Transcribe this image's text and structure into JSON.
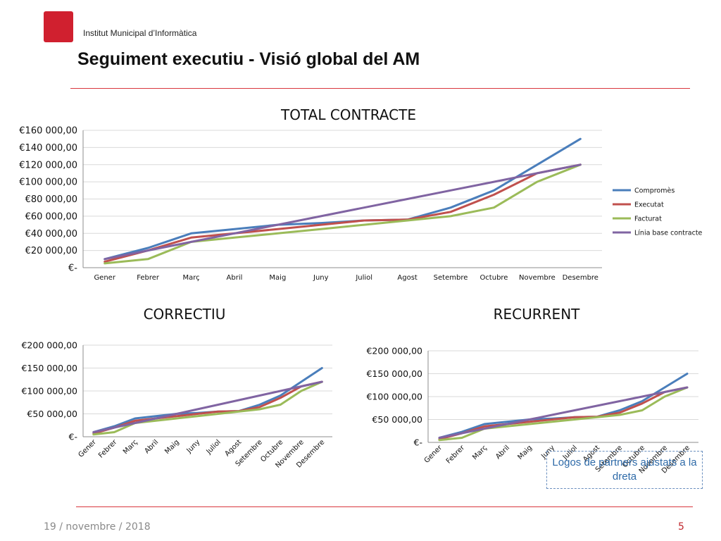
{
  "header": {
    "org": "Institut Municipal d’Informàtica",
    "title": "Seguiment executiu - Visió global del AM"
  },
  "colors": {
    "accent_red": "#d9363e",
    "compromes": "#4a7ebb",
    "executat": "#c0504d",
    "facturat": "#9bbb59",
    "linia_base": "#8064a2"
  },
  "chart_data": [
    {
      "id": "total",
      "type": "line",
      "title": "TOTAL CONTRACTE",
      "categories": [
        "Gener",
        "Febrer",
        "Març",
        "Abril",
        "Maig",
        "Juny",
        "Juliol",
        "Agost",
        "Setembre",
        "Octubre",
        "Novembre",
        "Desembre"
      ],
      "y_ticks": [
        0,
        20000,
        40000,
        60000,
        80000,
        100000,
        120000,
        140000,
        160000
      ],
      "y_tick_labels": [
        "€-",
        "€20 000,00",
        "€40 000,00",
        "€60 000,00",
        "€80 000,00",
        "€100 000,00",
        "€120 000,00",
        "€140 000,00",
        "€160 000,00"
      ],
      "ylim": [
        0,
        160000
      ],
      "grid": true,
      "legend_position": "right",
      "series": [
        {
          "name": "Compromès",
          "color": "#4a7ebb",
          "values": [
            10000,
            23000,
            40000,
            45000,
            50000,
            52000,
            55000,
            56000,
            70000,
            90000,
            120000,
            150000
          ]
        },
        {
          "name": "Executat",
          "color": "#c0504d",
          "values": [
            7000,
            20000,
            35000,
            40000,
            45000,
            50000,
            55000,
            56000,
            65000,
            85000,
            110000,
            120000
          ]
        },
        {
          "name": "Facturat",
          "color": "#9bbb59",
          "values": [
            5000,
            10000,
            30000,
            35000,
            40000,
            45000,
            50000,
            55000,
            60000,
            70000,
            100000,
            120000
          ]
        },
        {
          "name": "Línia base contracte",
          "color": "#8064a2",
          "values": [
            10000,
            20000,
            30000,
            40000,
            50000,
            60000,
            70000,
            80000,
            90000,
            100000,
            110000,
            120000
          ]
        }
      ]
    },
    {
      "id": "correctiu",
      "type": "line",
      "title": "CORRECTIU",
      "categories": [
        "Gener",
        "Febrer",
        "Març",
        "Abril",
        "Maig",
        "Juny",
        "Juliol",
        "Agost",
        "Setembre",
        "Octubre",
        "Novembre",
        "Desembre"
      ],
      "y_ticks": [
        0,
        50000,
        100000,
        150000,
        200000
      ],
      "y_tick_labels": [
        "€-",
        "€50 000,00",
        "€100 000,00",
        "€150 000,00",
        "€200 000,00"
      ],
      "ylim": [
        0,
        200000
      ],
      "grid": true,
      "series": [
        {
          "name": "Compromès",
          "color": "#4a7ebb",
          "values": [
            10000,
            23000,
            40000,
            45000,
            50000,
            52000,
            55000,
            56000,
            70000,
            90000,
            120000,
            150000
          ]
        },
        {
          "name": "Executat",
          "color": "#c0504d",
          "values": [
            7000,
            20000,
            35000,
            40000,
            45000,
            50000,
            55000,
            56000,
            65000,
            85000,
            110000,
            120000
          ]
        },
        {
          "name": "Facturat",
          "color": "#9bbb59",
          "values": [
            5000,
            10000,
            30000,
            35000,
            40000,
            45000,
            50000,
            55000,
            60000,
            70000,
            100000,
            120000
          ]
        },
        {
          "name": "Línia base contracte",
          "color": "#8064a2",
          "values": [
            10000,
            20000,
            30000,
            40000,
            50000,
            60000,
            70000,
            80000,
            90000,
            100000,
            110000,
            120000
          ]
        }
      ]
    },
    {
      "id": "recurrent",
      "type": "line",
      "title": "RECURRENT",
      "categories": [
        "Gener",
        "Febrer",
        "Març",
        "Abril",
        "Maig",
        "Juny",
        "Juliol",
        "Agost",
        "Setembre",
        "Octubre",
        "Novembre",
        "Desembre"
      ],
      "y_ticks": [
        0,
        50000,
        100000,
        150000,
        200000
      ],
      "y_tick_labels": [
        "€-",
        "€50 000,00",
        "€100 000,00",
        "€150 000,00",
        "€200 000,00"
      ],
      "ylim": [
        0,
        200000
      ],
      "grid": true,
      "series": [
        {
          "name": "Compromès",
          "color": "#4a7ebb",
          "values": [
            10000,
            23000,
            40000,
            45000,
            50000,
            52000,
            55000,
            56000,
            70000,
            90000,
            120000,
            150000
          ]
        },
        {
          "name": "Executat",
          "color": "#c0504d",
          "values": [
            7000,
            20000,
            35000,
            40000,
            45000,
            50000,
            55000,
            56000,
            65000,
            85000,
            110000,
            120000
          ]
        },
        {
          "name": "Facturat",
          "color": "#9bbb59",
          "values": [
            5000,
            10000,
            30000,
            35000,
            40000,
            45000,
            50000,
            55000,
            60000,
            70000,
            100000,
            120000
          ]
        },
        {
          "name": "Línia base contracte",
          "color": "#8064a2",
          "values": [
            10000,
            20000,
            30000,
            40000,
            50000,
            60000,
            70000,
            80000,
            90000,
            100000,
            110000,
            120000
          ]
        }
      ]
    }
  ],
  "note": {
    "text": "Logos de partners ajustats a la dreta"
  },
  "footer": {
    "date": "19 / novembre / 2018",
    "page": "5"
  }
}
